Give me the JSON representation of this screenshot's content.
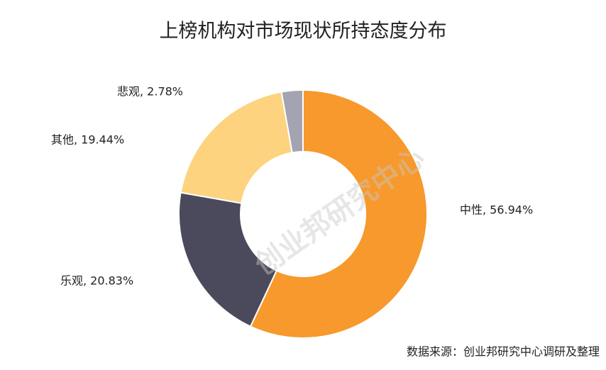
{
  "chart_data": {
    "type": "donut",
    "title": "上榜机构对市场现状所持态度分布",
    "values": [
      56.94,
      20.83,
      19.44,
      2.78
    ],
    "value_labels": [
      "中性, 56.94%",
      "乐观, 20.83%",
      "其他, 19.44%",
      "悲观, 2.78%"
    ],
    "colors": [
      "#f7992c",
      "#4b4a5c",
      "#fdd37f",
      "#a3a3b1"
    ],
    "watermark": "创业邦研究中心",
    "source": "数据来源：创业邦研究中心调研及整理"
  }
}
